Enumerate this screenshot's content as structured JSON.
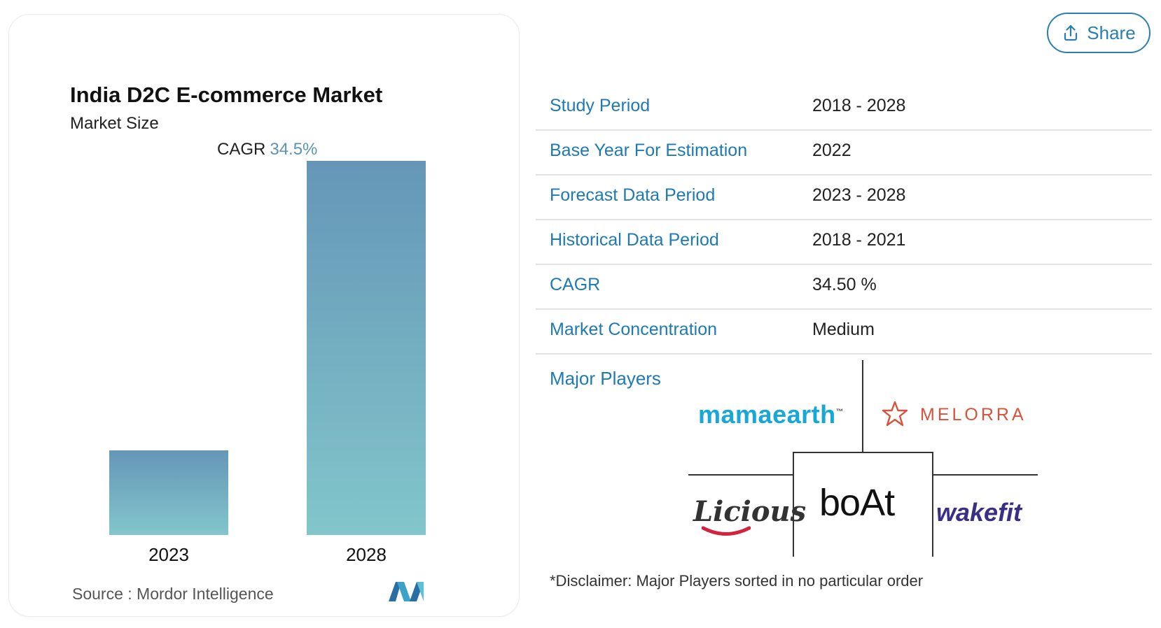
{
  "chart": {
    "title": "India D2C E-commerce Market",
    "subtitle": "Market Size",
    "cagr_label": "CAGR",
    "cagr_value": "34.5%",
    "source": "Source :  Mordor Intelligence"
  },
  "chart_data": {
    "type": "bar",
    "title": "India D2C E-commerce Market",
    "subtitle": "Market Size",
    "categories": [
      "2023",
      "2028"
    ],
    "values": [
      0.227,
      1.0
    ],
    "annotation": "CAGR 34.5%",
    "colors": [
      "#6596b7",
      "#82c6cb"
    ],
    "grid": false
  },
  "share": {
    "label": "Share",
    "icon": "upload-icon",
    "color": "#2a7fb0"
  },
  "table": {
    "rows": [
      {
        "key": "Study Period",
        "value": "2018 - 2028"
      },
      {
        "key": "Base Year For Estimation",
        "value": "2022"
      },
      {
        "key": "Forecast Data Period",
        "value": "2023 - 2028"
      },
      {
        "key": "Historical Data Period",
        "value": "2018 - 2021"
      },
      {
        "key": "CAGR",
        "value": "34.50 %"
      },
      {
        "key": "Market Concentration",
        "value": "Medium"
      }
    ]
  },
  "players": {
    "title": "Major Players",
    "brands": [
      "mamaearth",
      "MELORRA",
      "Licious",
      "boAt",
      "wakefit"
    ],
    "mamaearth_mark": "™",
    "disclaimer": "*Disclaimer: Major Players sorted in no particular order"
  }
}
